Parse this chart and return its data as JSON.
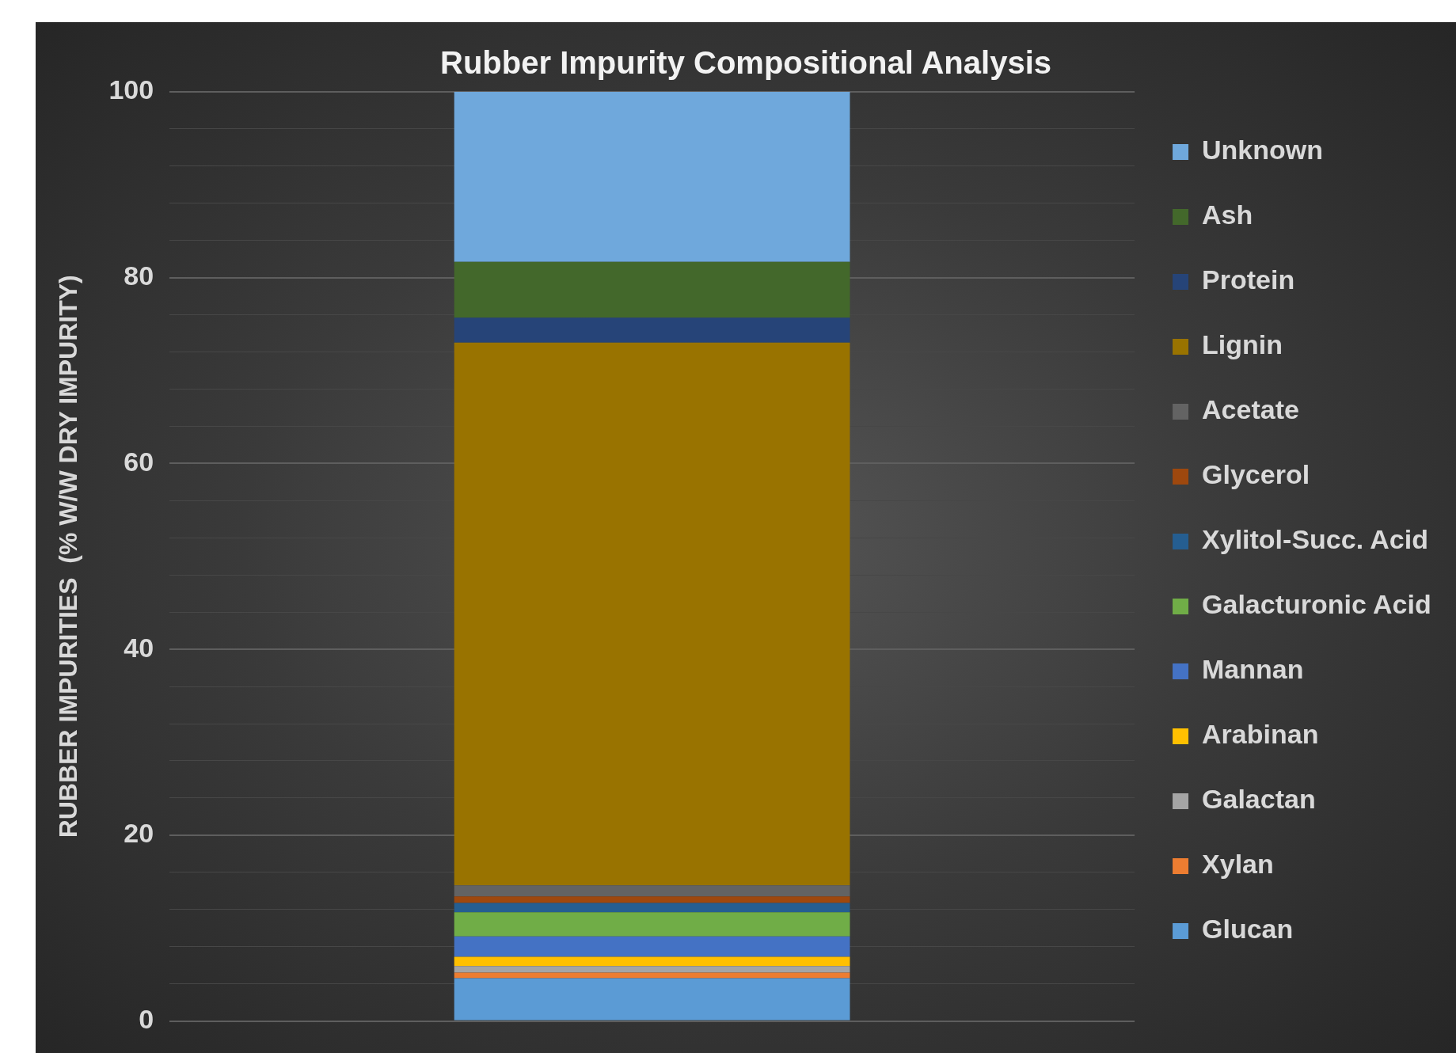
{
  "chart_data": {
    "type": "bar",
    "title": "Rubber Impurity Compositional Analysis",
    "ylabel": "RUBBER IMPURITIES  (% W/W DRY IMPURITY)",
    "categories": [
      null
    ],
    "stacked": true,
    "legend": "right",
    "grid": "y",
    "tick_labels": "y",
    "ylim": [
      0,
      100
    ],
    "yticks": [
      0,
      {
        "value": 4,
        "label": null
      },
      {
        "value": 8,
        "label": null
      },
      {
        "value": 12,
        "label": null
      },
      {
        "value": 16,
        "label": null
      },
      20,
      {
        "value": 24,
        "label": null
      },
      {
        "value": 28,
        "label": null
      },
      {
        "value": 32,
        "label": null
      },
      {
        "value": 36,
        "label": null
      },
      40,
      {
        "value": 44,
        "label": null
      },
      {
        "value": 48,
        "label": null
      },
      {
        "value": 52,
        "label": null
      },
      {
        "value": 56,
        "label": null
      },
      60,
      {
        "value": 64,
        "label": null
      },
      {
        "value": 68,
        "label": null
      },
      {
        "value": 72,
        "label": null
      },
      {
        "value": 76,
        "label": null
      },
      80,
      {
        "value": 84,
        "label": null
      },
      {
        "value": 88,
        "label": null
      },
      {
        "value": 92,
        "label": null
      },
      {
        "value": 96,
        "label": null
      },
      100
    ],
    "series": [
      {
        "name": "Glucan",
        "color": "#5b9bd5",
        "values": [
          4.6
        ]
      },
      {
        "name": "Xylan",
        "color": "#ed7d31",
        "values": [
          0.6
        ]
      },
      {
        "name": "Galactan",
        "color": "#a5a5a5",
        "values": [
          0.7
        ]
      },
      {
        "name": "Arabinan",
        "color": "#ffc000",
        "values": [
          1.0
        ]
      },
      {
        "name": "Mannan",
        "color": "#4472c4",
        "values": [
          2.2
        ]
      },
      {
        "name": "Galacturonic Acid",
        "color": "#70ad47",
        "values": [
          2.6
        ]
      },
      {
        "name": "Xylitol-Succ. Acid",
        "color": "#255e91",
        "values": [
          1.0
        ]
      },
      {
        "name": "Glycerol",
        "color": "#9e480e",
        "values": [
          0.7
        ]
      },
      {
        "name": "Acetate",
        "color": "#636363",
        "values": [
          1.2
        ]
      },
      {
        "name": "Lignin",
        "color": "#997300",
        "values": [
          58.4
        ]
      },
      {
        "name": "Protein",
        "color": "#264478",
        "values": [
          2.7
        ]
      },
      {
        "name": "Ash",
        "color": "#43682b",
        "values": [
          6.0
        ]
      },
      {
        "name": "Unknown",
        "color": "#6fa8dc",
        "values": [
          18.3
        ]
      }
    ]
  }
}
